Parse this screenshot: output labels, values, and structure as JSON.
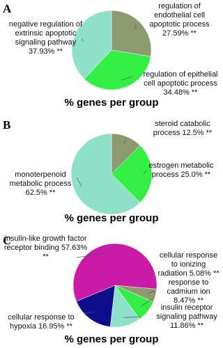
{
  "chart_data": [
    {
      "type": "pie",
      "panel_label": "A",
      "title": "% genes per group",
      "categories": [
        "regulation of endothelial cell apoptotic process",
        "regulation of epithelial cell apoptotic process",
        "negative regulation of extrinsic apoptotic signaling pathway"
      ],
      "values": [
        27.59,
        34.48,
        37.93
      ],
      "value_labels": [
        "27.59% **",
        "34.48% **",
        "37.93% **"
      ],
      "colors": [
        "#8c9c6e",
        "#33ee44",
        "#8fe0c9"
      ]
    },
    {
      "type": "pie",
      "panel_label": "B",
      "title": "% genes per group",
      "categories": [
        "steroid catabolic process",
        "estrogen metabolic process",
        "monoterpenoid metabolic process"
      ],
      "values": [
        12.5,
        25.0,
        62.5
      ],
      "value_labels": [
        "12.5% **",
        "25.0% **",
        "62.5% **"
      ],
      "colors": [
        "#8c9c6e",
        "#33ee44",
        "#8fe0c9"
      ]
    },
    {
      "type": "pie",
      "panel_label": "C",
      "title": "% genes per group",
      "categories": [
        "cellular response to ionizing radiation",
        "response to cadmium ion",
        "insulin receptor signaling pathway",
        "cellular response to hypoxia",
        "insulin-like growth factor receptor binding"
      ],
      "values": [
        5.08,
        8.47,
        11.86,
        16.95,
        57.63
      ],
      "value_labels": [
        "5.08% **",
        "8.47% **",
        "11.86% **",
        "16.95% **",
        "57.63% **"
      ],
      "colors": [
        "#8c9c6e",
        "#33ee44",
        "#8fe0c9",
        "#0d0d8c",
        "#cc1aa8"
      ]
    }
  ]
}
